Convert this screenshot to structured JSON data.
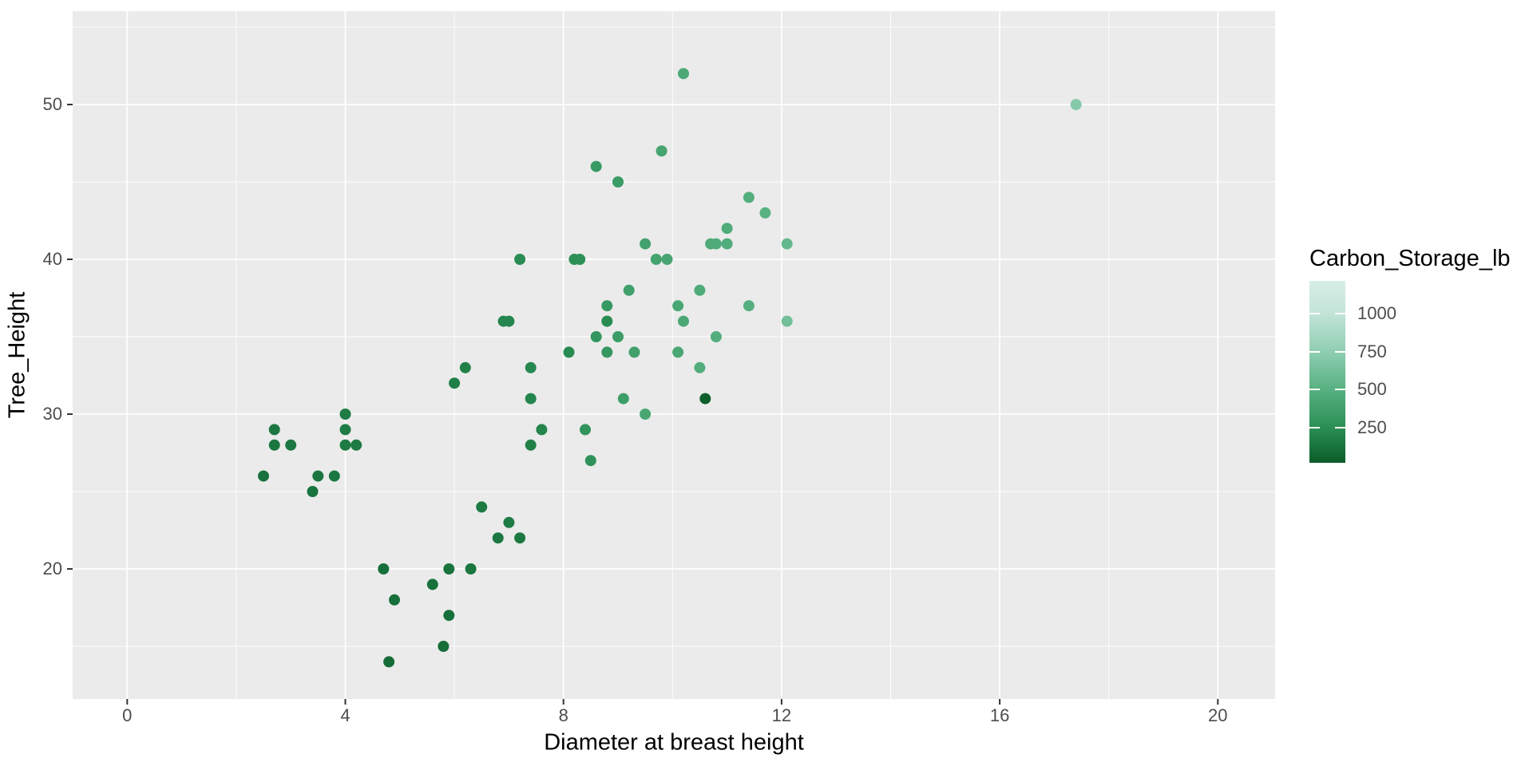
{
  "chart_data": {
    "type": "scatter",
    "title": "",
    "xlabel": "Diameter at breast height",
    "ylabel": "Tree_Height",
    "x_ticks": [
      0,
      4,
      8,
      12,
      16,
      20
    ],
    "y_ticks": [
      20,
      30,
      40,
      50
    ],
    "x_minor_ticks": [
      2,
      6,
      10,
      14,
      18
    ],
    "y_minor_ticks": [
      15,
      25,
      35,
      45,
      55
    ],
    "xlim": [
      -1.0,
      21.05
    ],
    "ylim": [
      11.6,
      56.03
    ],
    "grid": "on",
    "legend_position": "right",
    "colors": {
      "panel_bg": "#ebebeb",
      "grid": "#ffffff",
      "tick_mark": "#333333",
      "tick_label": "#4d4d4d",
      "axis_title": "#000000"
    },
    "legend": {
      "title": "Carbon_Storage_lb",
      "ticks": [
        1000,
        750,
        500,
        250
      ],
      "domain": [
        18,
        1217
      ],
      "stops": [
        {
          "v": 18,
          "c": "#0b5c2a"
        },
        {
          "v": 250,
          "c": "#2a8f55"
        },
        {
          "v": 500,
          "c": "#57b181"
        },
        {
          "v": 750,
          "c": "#8fceb2"
        },
        {
          "v": 1000,
          "c": "#c2e4d7"
        },
        {
          "v": 1217,
          "c": "#d8eee7"
        }
      ]
    },
    "series_name": "trees",
    "points": [
      {
        "x": 2.5,
        "y": 26,
        "carbon": 120
      },
      {
        "x": 2.7,
        "y": 28,
        "carbon": 135
      },
      {
        "x": 2.7,
        "y": 29,
        "carbon": 140
      },
      {
        "x": 3.0,
        "y": 28,
        "carbon": 145
      },
      {
        "x": 3.4,
        "y": 25,
        "carbon": 125
      },
      {
        "x": 3.5,
        "y": 26,
        "carbon": 130
      },
      {
        "x": 3.8,
        "y": 26,
        "carbon": 140
      },
      {
        "x": 4.0,
        "y": 28,
        "carbon": 155
      },
      {
        "x": 4.0,
        "y": 29,
        "carbon": 160
      },
      {
        "x": 4.0,
        "y": 30,
        "carbon": 165
      },
      {
        "x": 4.2,
        "y": 28,
        "carbon": 160
      },
      {
        "x": 4.7,
        "y": 20,
        "carbon": 110
      },
      {
        "x": 4.8,
        "y": 14,
        "carbon": 90
      },
      {
        "x": 4.9,
        "y": 18,
        "carbon": 105
      },
      {
        "x": 5.6,
        "y": 19,
        "carbon": 115
      },
      {
        "x": 5.8,
        "y": 15,
        "carbon": 95
      },
      {
        "x": 5.9,
        "y": 17,
        "carbon": 110
      },
      {
        "x": 5.9,
        "y": 20,
        "carbon": 125
      },
      {
        "x": 6.3,
        "y": 20,
        "carbon": 135
      },
      {
        "x": 6.5,
        "y": 24,
        "carbon": 155
      },
      {
        "x": 6.8,
        "y": 22,
        "carbon": 145
      },
      {
        "x": 7.0,
        "y": 23,
        "carbon": 160
      },
      {
        "x": 7.2,
        "y": 22,
        "carbon": 150
      },
      {
        "x": 6.0,
        "y": 32,
        "carbon": 175
      },
      {
        "x": 6.2,
        "y": 33,
        "carbon": 185
      },
      {
        "x": 6.9,
        "y": 36,
        "carbon": 210
      },
      {
        "x": 7.0,
        "y": 36,
        "carbon": 215
      },
      {
        "x": 7.2,
        "y": 40,
        "carbon": 240
      },
      {
        "x": 7.4,
        "y": 28,
        "carbon": 180
      },
      {
        "x": 7.4,
        "y": 31,
        "carbon": 205
      },
      {
        "x": 7.4,
        "y": 33,
        "carbon": 220
      },
      {
        "x": 7.6,
        "y": 29,
        "carbon": 200
      },
      {
        "x": 8.1,
        "y": 34,
        "carbon": 230
      },
      {
        "x": 8.2,
        "y": 40,
        "carbon": 255
      },
      {
        "x": 8.3,
        "y": 40,
        "carbon": 260
      },
      {
        "x": 8.4,
        "y": 29,
        "carbon": 285
      },
      {
        "x": 8.5,
        "y": 27,
        "carbon": 275
      },
      {
        "x": 8.8,
        "y": 36,
        "carbon": 235
      },
      {
        "x": 8.6,
        "y": 35,
        "carbon": 300
      },
      {
        "x": 8.8,
        "y": 34,
        "carbon": 310
      },
      {
        "x": 8.8,
        "y": 37,
        "carbon": 320
      },
      {
        "x": 8.6,
        "y": 46,
        "carbon": 330
      },
      {
        "x": 9.0,
        "y": 45,
        "carbon": 340
      },
      {
        "x": 9.0,
        "y": 35,
        "carbon": 355
      },
      {
        "x": 9.1,
        "y": 31,
        "carbon": 360
      },
      {
        "x": 9.2,
        "y": 38,
        "carbon": 370
      },
      {
        "x": 9.3,
        "y": 34,
        "carbon": 375
      },
      {
        "x": 9.5,
        "y": 41,
        "carbon": 385
      },
      {
        "x": 9.7,
        "y": 40,
        "carbon": 395
      },
      {
        "x": 9.8,
        "y": 47,
        "carbon": 405
      },
      {
        "x": 9.9,
        "y": 40,
        "carbon": 415
      },
      {
        "x": 9.5,
        "y": 30,
        "carbon": 420
      },
      {
        "x": 10.1,
        "y": 34,
        "carbon": 425
      },
      {
        "x": 10.1,
        "y": 37,
        "carbon": 430
      },
      {
        "x": 10.2,
        "y": 36,
        "carbon": 435
      },
      {
        "x": 10.2,
        "y": 52,
        "carbon": 440
      },
      {
        "x": 10.5,
        "y": 38,
        "carbon": 450
      },
      {
        "x": 10.5,
        "y": 33,
        "carbon": 470
      },
      {
        "x": 10.8,
        "y": 35,
        "carbon": 480
      },
      {
        "x": 10.6,
        "y": 31,
        "carbon": 30
      },
      {
        "x": 10.7,
        "y": 41,
        "carbon": 445
      },
      {
        "x": 10.8,
        "y": 41,
        "carbon": 455
      },
      {
        "x": 11.0,
        "y": 41,
        "carbon": 465
      },
      {
        "x": 11.0,
        "y": 42,
        "carbon": 460
      },
      {
        "x": 11.4,
        "y": 44,
        "carbon": 485
      },
      {
        "x": 11.4,
        "y": 37,
        "carbon": 490
      },
      {
        "x": 11.7,
        "y": 43,
        "carbon": 505
      },
      {
        "x": 12.1,
        "y": 41,
        "carbon": 560
      },
      {
        "x": 12.1,
        "y": 36,
        "carbon": 620
      },
      {
        "x": 17.4,
        "y": 50,
        "carbon": 705
      }
    ]
  }
}
